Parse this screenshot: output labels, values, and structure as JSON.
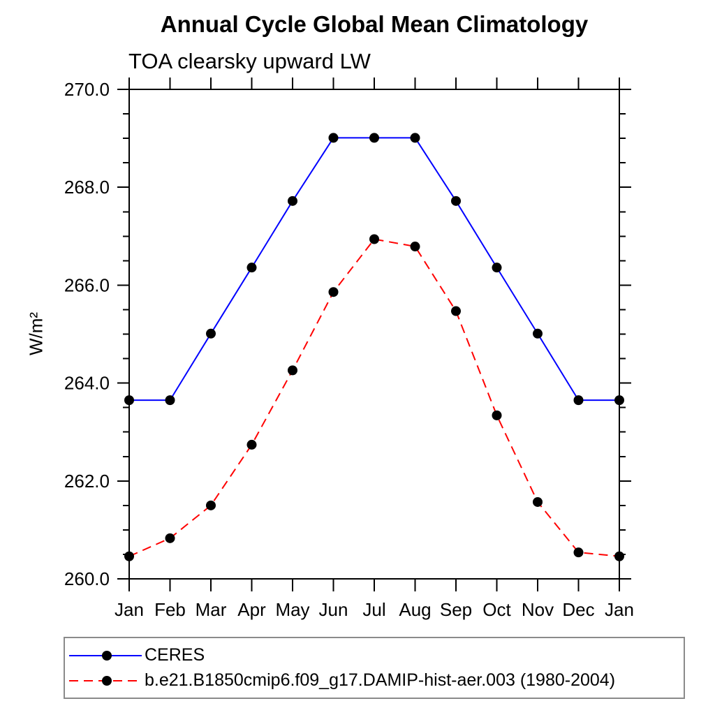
{
  "title": "Annual Cycle Global Mean Climatology",
  "subtitle": "TOA clearsky upward LW",
  "chart_data": {
    "type": "line",
    "title": "Annual Cycle Global Mean Climatology",
    "subtitle": "TOA clearsky upward LW",
    "xlabel": "",
    "ylabel": "W/m²",
    "categories": [
      "Jan",
      "Feb",
      "Mar",
      "Apr",
      "May",
      "Jun",
      "Jul",
      "Aug",
      "Sep",
      "Oct",
      "Nov",
      "Dec",
      "Jan"
    ],
    "ylim": [
      260.0,
      270.0
    ],
    "ytick_major_interval": 2.0,
    "ytick_minor_interval": 0.5,
    "ytick_labels": [
      "260.0",
      "262.0",
      "264.0",
      "266.0",
      "268.0",
      "270.0"
    ],
    "grid": false,
    "legend_position": "bottom",
    "axis_color": "#000000",
    "series": [
      {
        "name": "CERES",
        "color": "#0000ff",
        "line_style": "solid",
        "marker": "circle",
        "marker_color": "#000000",
        "values": [
          263.65,
          263.65,
          265.01,
          266.36,
          267.72,
          269.01,
          269.01,
          269.01,
          267.72,
          266.36,
          265.01,
          263.65,
          263.65
        ]
      },
      {
        "name": "b.e21.B1850cmip6.f09_g17.DAMIP-hist-aer.003 (1980-2004)",
        "color": "#ff0000",
        "line_style": "dashed",
        "marker": "circle",
        "marker_color": "#000000",
        "values": [
          260.46,
          260.83,
          261.5,
          262.74,
          264.26,
          265.86,
          266.94,
          266.79,
          265.47,
          263.34,
          261.57,
          260.54,
          260.46
        ]
      }
    ]
  }
}
